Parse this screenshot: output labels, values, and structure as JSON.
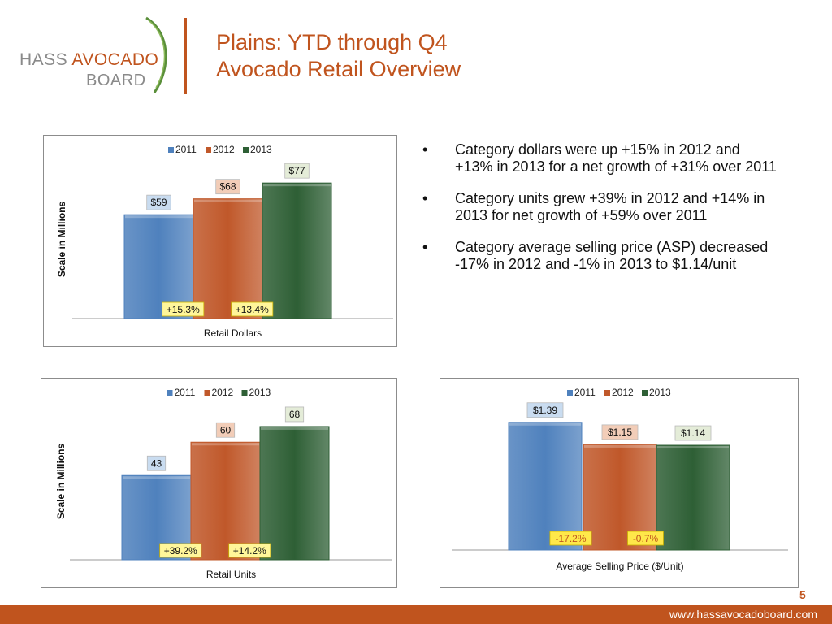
{
  "logo": {
    "text_hass": "HASS",
    "text_avocado": "AVOCADO",
    "text_board": "BOARD"
  },
  "title": {
    "line1": "Plains: YTD through Q4",
    "line2": "Avocado Retail Overview"
  },
  "bullets": [
    "Category dollars were up +15% in 2012 and +13% in 2013 for a net growth of +31% over 2011",
    "Category units grew +39% in 2012 and +14% in 2013 for net growth of +59% over 2011",
    "Category average selling price (ASP) decreased -17% in 2012 and -1% in 2013 to $1.14/unit"
  ],
  "colors": {
    "accent": "#c0541e",
    "s2011": "#4f81bd",
    "s2012": "#c0582a",
    "s2013": "#2e5f35"
  },
  "chart_data": [
    {
      "type": "bar",
      "legend": [
        "2011",
        "2012",
        "2013"
      ],
      "values": [
        59,
        68,
        77
      ],
      "data_labels": [
        "$59",
        "$68",
        "$77"
      ],
      "growth_labels": [
        "+15.3%",
        "+13.4%"
      ],
      "xlabel": "Retail Dollars",
      "ylabel": "Scale in Millions",
      "ylim": [
        0,
        90
      ],
      "legend_position": "top"
    },
    {
      "type": "bar",
      "legend": [
        "2011",
        "2012",
        "2013"
      ],
      "values": [
        43,
        60,
        68
      ],
      "data_labels": [
        "43",
        "60",
        "68"
      ],
      "growth_labels": [
        "+39.2%",
        "+14.2%"
      ],
      "xlabel": "Retail Units",
      "ylabel": "Scale in Millions",
      "ylim": [
        0,
        80
      ],
      "legend_position": "top"
    },
    {
      "type": "bar",
      "legend": [
        "2011",
        "2012",
        "2013"
      ],
      "values": [
        1.39,
        1.15,
        1.14
      ],
      "data_labels": [
        "$1.39",
        "$1.15",
        "$1.14"
      ],
      "growth_labels": [
        "-17.2%",
        "-0.7%"
      ],
      "xlabel": "Average Selling Price ($/Unit)",
      "ylabel": "",
      "ylim": [
        0,
        1.6
      ],
      "legend_position": "top"
    }
  ],
  "page_number": "5",
  "footer": {
    "url": "www.hassavocadoboard.com"
  }
}
